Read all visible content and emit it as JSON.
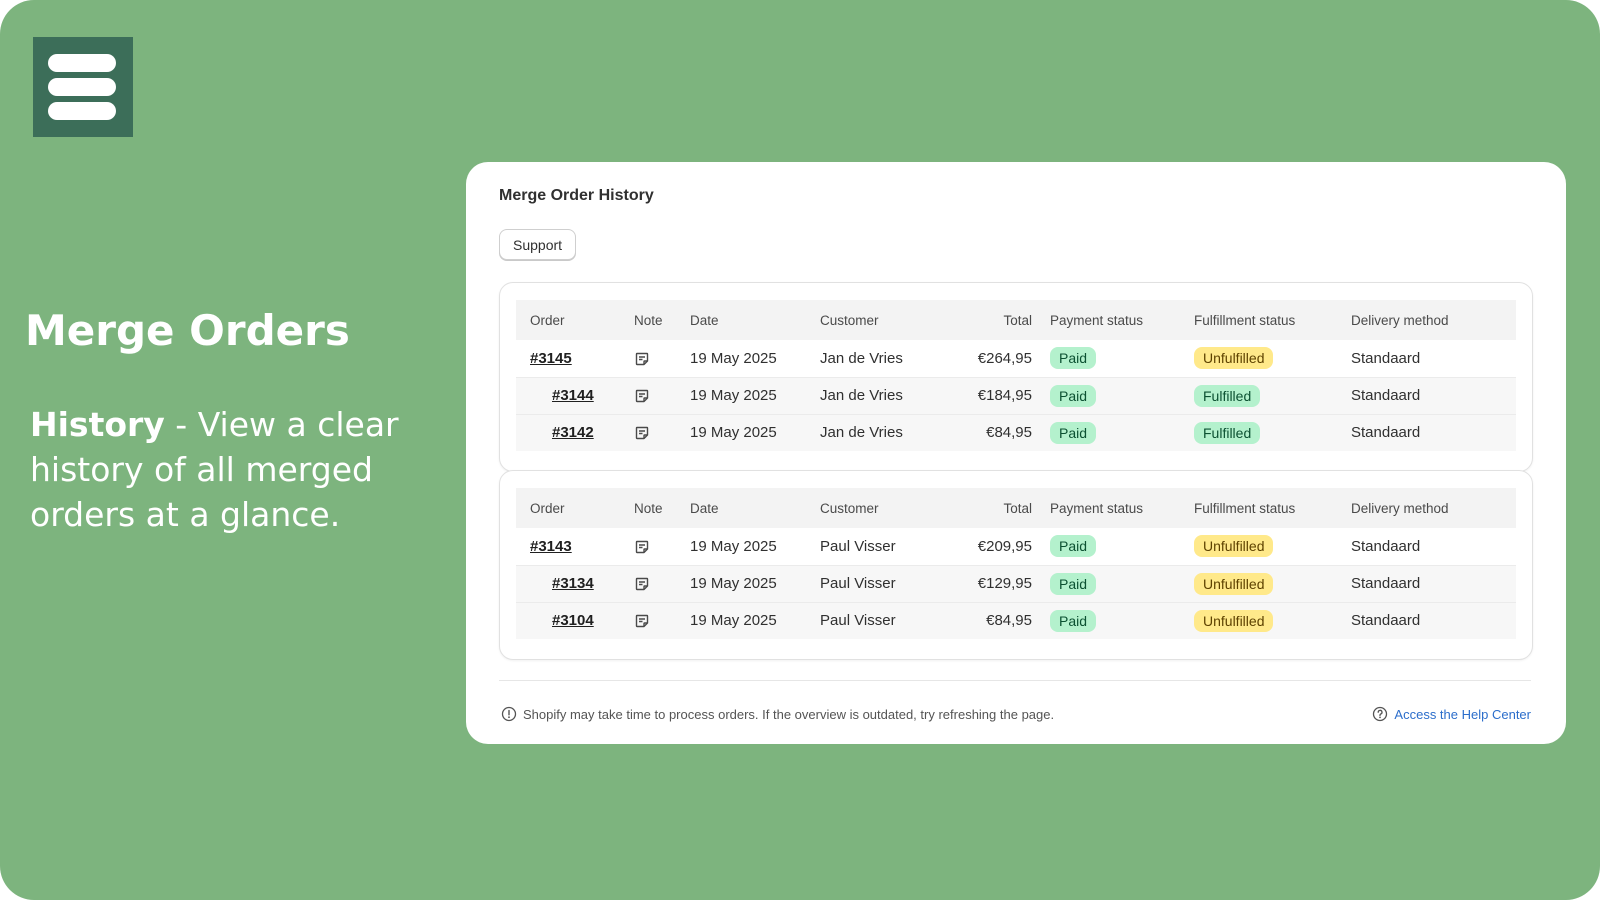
{
  "promo": {
    "headline": "Merge Orders",
    "feature": "History",
    "separator": " - ",
    "description": "View a clear history of all merged orders at a glance."
  },
  "panel": {
    "title": "Merge Order History",
    "support_label": "Support"
  },
  "columns": [
    "Order",
    "Note",
    "Date",
    "Customer",
    "Total",
    "Payment status",
    "Fulfillment status",
    "Delivery method"
  ],
  "groups": [
    {
      "rows": [
        {
          "order": "#3145",
          "date": "19 May 2025",
          "customer": "Jan de Vries",
          "total": "€264,95",
          "payment": "Paid",
          "fulfillment": "Unfulfilled",
          "delivery": "Standaard"
        },
        {
          "order": "#3144",
          "date": "19 May 2025",
          "customer": "Jan de Vries",
          "total": "€184,95",
          "payment": "Paid",
          "fulfillment": "Fulfilled",
          "delivery": "Standaard"
        },
        {
          "order": "#3142",
          "date": "19 May 2025",
          "customer": "Jan de Vries",
          "total": "€84,95",
          "payment": "Paid",
          "fulfillment": "Fulfilled",
          "delivery": "Standaard"
        }
      ]
    },
    {
      "rows": [
        {
          "order": "#3143",
          "date": "19 May 2025",
          "customer": "Paul Visser",
          "total": "€209,95",
          "payment": "Paid",
          "fulfillment": "Unfulfilled",
          "delivery": "Standaard"
        },
        {
          "order": "#3134",
          "date": "19 May 2025",
          "customer": "Paul Visser",
          "total": "€129,95",
          "payment": "Paid",
          "fulfillment": "Unfulfilled",
          "delivery": "Standaard"
        },
        {
          "order": "#3104",
          "date": "19 May 2025",
          "customer": "Paul Visser",
          "total": "€84,95",
          "payment": "Paid",
          "fulfillment": "Unfulfilled",
          "delivery": "Standaard"
        }
      ]
    }
  ],
  "footer": {
    "note": "Shopify may take time to process orders. If the overview is outdated, try refreshing the page.",
    "help_label": "Access the Help Center"
  },
  "icons": {
    "logo": "stacked-bars-logo-icon",
    "note": "note-icon",
    "info": "info-circle-icon",
    "help": "question-circle-icon"
  },
  "colors": {
    "background": "#7db47e",
    "logo": "#3c6e59",
    "paid": "#b4f1cd",
    "unfulfilled": "#ffe98a",
    "link": "#2c6ecb"
  }
}
